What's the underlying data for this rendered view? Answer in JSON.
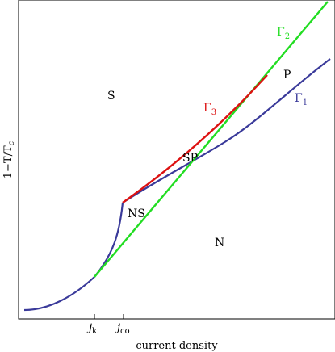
{
  "axes": {
    "xlabel": "current density",
    "ylabel": {
      "main": "1−T/T",
      "sub": "c"
    },
    "ticks": [
      {
        "base": "j",
        "sub": "k"
      },
      {
        "base": "j",
        "sub": "co"
      }
    ]
  },
  "regions": {
    "S": "S",
    "N": "N",
    "NS": "NS",
    "SP": "SP",
    "P": "P"
  },
  "curves": {
    "gamma1": {
      "base": "Γ",
      "sub": "1",
      "color": "#3a3a9a"
    },
    "gamma2": {
      "base": "Γ",
      "sub": "2",
      "color": "#22dd22"
    },
    "gamma3": {
      "base": "Γ",
      "sub": "3",
      "color": "#dd1111"
    }
  }
}
